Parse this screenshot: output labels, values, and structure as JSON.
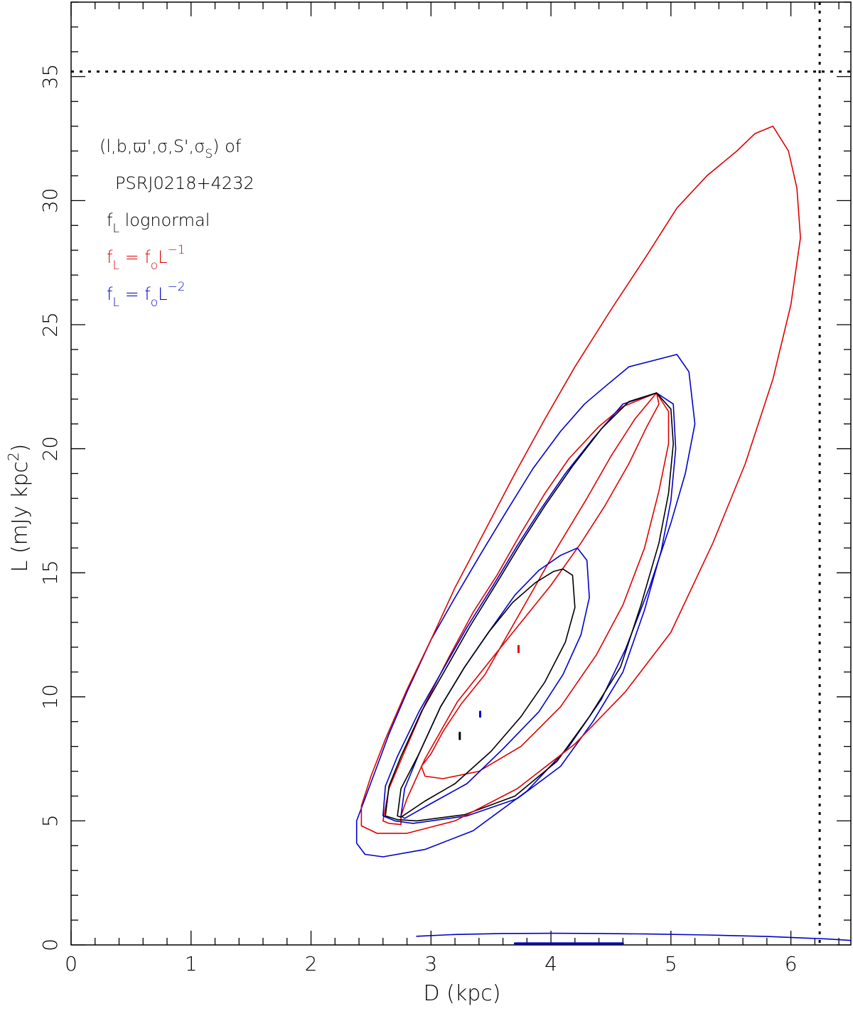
{
  "chart_data": {
    "type": "line",
    "xlabel": "D (kpc)",
    "ylabel_main": "L (mJy kpc",
    "ylabel_sup": "2",
    "ylabel_close": ")",
    "xlim": [
      0,
      6.5
    ],
    "ylim": [
      0,
      38
    ],
    "xticks": [
      0,
      1,
      2,
      3,
      4,
      5,
      6
    ],
    "xtick_labels": [
      "0",
      "1",
      "2",
      "3",
      "4",
      "5",
      "6"
    ],
    "yticks": [
      0,
      5,
      10,
      15,
      20,
      25,
      30,
      35
    ],
    "ytick_labels": [
      "0",
      "5",
      "10",
      "15",
      "20",
      "25",
      "30",
      "35"
    ],
    "grid": false,
    "legend_position": "top-left",
    "colors": {
      "lognormal": "#000000",
      "inverse": "#e00000",
      "inverse_square": "#0000cc"
    },
    "annotation": {
      "line1": "(l,b,ϖ',σ,S',σ",
      "line1_sub": "S",
      "line1_end": ") of",
      "line2": "PSRJ0218+4232",
      "legend": [
        {
          "f": "f",
          "sub": "L",
          "rest": " lognormal",
          "sup": "",
          "color": "#000000"
        },
        {
          "f": "f",
          "sub": "L",
          "rest": " = f",
          "sub2": "o",
          "rest2": "L",
          "sup": "−1",
          "color": "#e00000"
        },
        {
          "f": "f",
          "sub": "L",
          "rest": " = f",
          "sub2": "o",
          "rest2": "L",
          "sup": "−2",
          "color": "#0000cc"
        }
      ]
    },
    "reference_lines": {
      "x": 6.24,
      "y": 35.2
    },
    "series": [
      {
        "key": "inverse",
        "contours": [
          [
            [
              3.73,
              12.05
            ],
            [
              3.73,
              11.8
            ]
          ],
          [
            [
              2.92,
              7.2
            ],
            [
              3.0,
              7.7
            ],
            [
              3.1,
              8.6
            ],
            [
              3.25,
              9.7
            ],
            [
              3.45,
              10.9
            ],
            [
              3.65,
              12.6
            ],
            [
              3.85,
              14.3
            ],
            [
              4.05,
              16.0
            ],
            [
              4.3,
              18.0
            ],
            [
              4.5,
              19.7
            ],
            [
              4.7,
              21.2
            ],
            [
              4.88,
              22.25
            ],
            [
              4.98,
              21.5
            ],
            [
              4.98,
              20.2
            ],
            [
              4.9,
              18.3
            ],
            [
              4.78,
              16.0
            ],
            [
              4.6,
              13.7
            ],
            [
              4.38,
              11.7
            ],
            [
              4.08,
              9.6
            ],
            [
              3.75,
              8.0
            ],
            [
              3.4,
              7.0
            ],
            [
              3.1,
              6.7
            ],
            [
              2.95,
              6.8
            ],
            [
              2.92,
              7.2
            ]
          ],
          [
            [
              2.6,
              5.0
            ],
            [
              2.65,
              6.3
            ],
            [
              2.78,
              7.8
            ],
            [
              2.95,
              9.7
            ],
            [
              3.15,
              11.6
            ],
            [
              3.35,
              13.4
            ],
            [
              3.55,
              14.9
            ],
            [
              3.75,
              16.6
            ],
            [
              3.95,
              18.2
            ],
            [
              4.15,
              19.6
            ],
            [
              4.4,
              20.9
            ],
            [
              4.6,
              21.7
            ],
            [
              4.88,
              22.25
            ],
            [
              4.9,
              21.8
            ],
            [
              4.8,
              20.9
            ],
            [
              4.65,
              19.4
            ],
            [
              4.45,
              17.7
            ],
            [
              4.25,
              16.2
            ],
            [
              4.0,
              14.5
            ],
            [
              3.75,
              13.0
            ],
            [
              3.5,
              11.5
            ],
            [
              3.22,
              9.8
            ],
            [
              2.95,
              7.5
            ],
            [
              2.8,
              5.9
            ],
            [
              2.75,
              5.2
            ],
            [
              2.75,
              4.85
            ],
            [
              2.65,
              4.9
            ],
            [
              2.6,
              5.0
            ]
          ]
        ]
      },
      {
        "key": "inverse_square",
        "contours": [
          [
            [
              3.41,
              9.4
            ],
            [
              3.41,
              9.2
            ]
          ],
          [
            [
              2.75,
              5.2
            ],
            [
              2.78,
              6.3
            ],
            [
              2.9,
              7.7
            ],
            [
              3.08,
              9.6
            ],
            [
              3.28,
              11.2
            ],
            [
              3.48,
              12.6
            ],
            [
              3.7,
              14.1
            ],
            [
              3.9,
              15.1
            ],
            [
              4.08,
              15.7
            ],
            [
              4.22,
              16.0
            ],
            [
              4.3,
              15.5
            ],
            [
              4.32,
              14.0
            ],
            [
              4.25,
              12.5
            ],
            [
              4.1,
              10.9
            ],
            [
              3.9,
              9.4
            ],
            [
              3.6,
              7.9
            ],
            [
              3.3,
              6.5
            ],
            [
              3.0,
              5.7
            ],
            [
              2.78,
              5.1
            ],
            [
              2.75,
              5.2
            ]
          ],
          [
            [
              2.6,
              5.2
            ],
            [
              2.62,
              6.4
            ],
            [
              2.72,
              7.6
            ],
            [
              2.9,
              9.4
            ],
            [
              3.1,
              11.1
            ],
            [
              3.3,
              12.8
            ],
            [
              3.52,
              14.5
            ],
            [
              3.72,
              16.1
            ],
            [
              3.92,
              17.6
            ],
            [
              4.12,
              19.0
            ],
            [
              4.35,
              20.4
            ],
            [
              4.6,
              21.8
            ],
            [
              4.88,
              22.25
            ],
            [
              5.02,
              21.8
            ],
            [
              5.04,
              20.0
            ],
            [
              5.0,
              17.9
            ],
            [
              4.92,
              15.9
            ],
            [
              4.78,
              13.5
            ],
            [
              4.6,
              11.0
            ],
            [
              4.35,
              9.0
            ],
            [
              4.08,
              7.2
            ],
            [
              3.72,
              5.9
            ],
            [
              3.3,
              5.2
            ],
            [
              2.85,
              4.9
            ],
            [
              2.7,
              5.0
            ],
            [
              2.6,
              5.2
            ]
          ],
          [
            [
              2.45,
              5.9
            ],
            [
              2.55,
              7.2
            ],
            [
              2.65,
              8.5
            ],
            [
              2.8,
              10.2
            ],
            [
              3.0,
              12.3
            ],
            [
              3.2,
              14.0
            ],
            [
              3.42,
              15.8
            ],
            [
              3.62,
              17.4
            ],
            [
              3.85,
              19.2
            ],
            [
              4.08,
              20.7
            ],
            [
              4.28,
              21.8
            ],
            [
              4.45,
              22.5
            ],
            [
              4.65,
              23.3
            ],
            [
              4.85,
              23.55
            ],
            [
              5.05,
              23.8
            ],
            [
              5.15,
              23.1
            ],
            [
              5.2,
              21.0
            ],
            [
              5.12,
              19.0
            ],
            [
              5.0,
              17.0
            ],
            [
              4.82,
              14.4
            ],
            [
              4.62,
              11.9
            ],
            [
              4.42,
              9.9
            ],
            [
              4.15,
              8.0
            ],
            [
              3.8,
              6.2
            ],
            [
              3.35,
              4.6
            ],
            [
              2.95,
              3.85
            ],
            [
              2.6,
              3.55
            ],
            [
              2.45,
              3.65
            ],
            [
              2.38,
              4.1
            ],
            [
              2.38,
              5.0
            ],
            [
              2.45,
              5.9
            ]
          ],
          [
            [
              2.88,
              0.35
            ],
            [
              3.2,
              0.42
            ],
            [
              3.6,
              0.46
            ],
            [
              4.0,
              0.47
            ],
            [
              4.4,
              0.46
            ],
            [
              4.8,
              0.44
            ],
            [
              5.3,
              0.4
            ],
            [
              5.8,
              0.34
            ],
            [
              6.3,
              0.24
            ],
            [
              6.5,
              0.18
            ]
          ],
          [
            [
              3.7,
              0.06
            ],
            [
              4.6,
              0.06
            ]
          ]
        ]
      },
      {
        "key": "lognormal",
        "contours": [
          [
            [
              3.24,
              8.55
            ],
            [
              3.24,
              8.3
            ]
          ],
          [
            [
              2.72,
              5.2
            ],
            [
              2.75,
              6.3
            ],
            [
              2.9,
              7.7
            ],
            [
              3.08,
              9.6
            ],
            [
              3.28,
              11.2
            ],
            [
              3.48,
              12.6
            ],
            [
              3.68,
              13.8
            ],
            [
              3.87,
              14.6
            ],
            [
              4.02,
              15.05
            ],
            [
              4.1,
              15.15
            ],
            [
              4.18,
              14.9
            ],
            [
              4.2,
              13.6
            ],
            [
              4.12,
              12.2
            ],
            [
              3.95,
              10.6
            ],
            [
              3.75,
              9.2
            ],
            [
              3.5,
              7.8
            ],
            [
              3.2,
              6.5
            ],
            [
              2.95,
              5.8
            ],
            [
              2.75,
              5.15
            ],
            [
              2.72,
              5.2
            ]
          ],
          [
            [
              2.62,
              5.2
            ],
            [
              2.65,
              6.4
            ],
            [
              2.75,
              7.6
            ],
            [
              2.92,
              9.4
            ],
            [
              3.12,
              11.1
            ],
            [
              3.32,
              12.8
            ],
            [
              3.55,
              14.6
            ],
            [
              3.75,
              16.2
            ],
            [
              3.95,
              17.7
            ],
            [
              4.18,
              19.3
            ],
            [
              4.42,
              20.8
            ],
            [
              4.65,
              21.9
            ],
            [
              4.88,
              22.25
            ],
            [
              5.0,
              21.6
            ],
            [
              5.02,
              20.2
            ],
            [
              4.98,
              18.2
            ],
            [
              4.9,
              16.2
            ],
            [
              4.75,
              13.7
            ],
            [
              4.58,
              11.2
            ],
            [
              4.32,
              9.2
            ],
            [
              4.05,
              7.4
            ],
            [
              3.7,
              6.0
            ],
            [
              3.28,
              5.25
            ],
            [
              2.88,
              5.0
            ],
            [
              2.72,
              5.05
            ],
            [
              2.62,
              5.2
            ]
          ]
        ]
      },
      {
        "key": "inverse",
        "contours": [
          [
            [
              2.42,
              5.6
            ],
            [
              2.5,
              6.8
            ],
            [
              2.62,
              8.3
            ],
            [
              2.8,
              10.3
            ],
            [
              3.0,
              12.3
            ],
            [
              3.2,
              14.4
            ],
            [
              3.45,
              16.7
            ],
            [
              3.7,
              19.0
            ],
            [
              3.95,
              21.2
            ],
            [
              4.2,
              23.3
            ],
            [
              4.5,
              25.6
            ],
            [
              4.8,
              27.8
            ],
            [
              5.05,
              29.7
            ],
            [
              5.3,
              31.0
            ],
            [
              5.55,
              32.0
            ],
            [
              5.7,
              32.7
            ],
            [
              5.85,
              33.0
            ],
            [
              5.98,
              32.0
            ],
            [
              6.05,
              30.5
            ],
            [
              6.08,
              28.5
            ],
            [
              6.0,
              25.8
            ],
            [
              5.85,
              22.8
            ],
            [
              5.62,
              19.4
            ],
            [
              5.35,
              16.2
            ],
            [
              5.0,
              12.6
            ],
            [
              4.62,
              10.2
            ],
            [
              4.2,
              8.1
            ],
            [
              3.72,
              6.3
            ],
            [
              3.2,
              5.0
            ],
            [
              2.8,
              4.5
            ],
            [
              2.55,
              4.5
            ],
            [
              2.42,
              4.8
            ],
            [
              2.42,
              5.6
            ]
          ]
        ]
      }
    ]
  }
}
